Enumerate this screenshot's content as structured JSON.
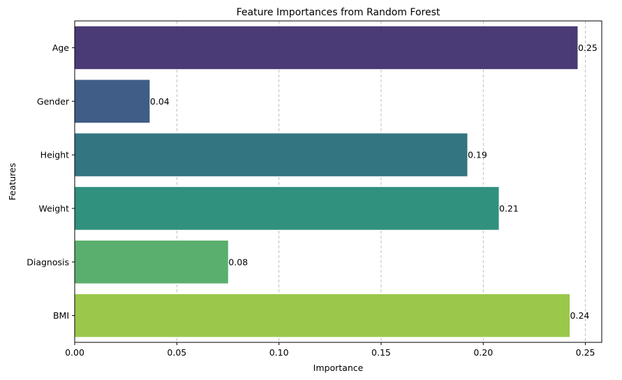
{
  "chart_data": {
    "type": "bar",
    "orientation": "horizontal",
    "title": "Feature Importances from Random Forest",
    "xlabel": "Importance",
    "ylabel": "Features",
    "categories": [
      "Age",
      "Gender",
      "Height",
      "Weight",
      "Diagnosis",
      "BMI"
    ],
    "values": [
      0.2462,
      0.0367,
      0.1922,
      0.2076,
      0.0751,
      0.2423
    ],
    "data_labels": [
      "0.25",
      "0.04",
      "0.19",
      "0.21",
      "0.08",
      "0.24"
    ],
    "colors": [
      "#4a3b77",
      "#3f5d86",
      "#337581",
      "#30917e",
      "#5aaf6e",
      "#9bc84b"
    ],
    "xlim": [
      0,
      0.258
    ],
    "xticks": [
      0.0,
      0.05,
      0.1,
      0.15,
      0.2,
      0.25
    ],
    "xtick_labels": [
      "0.00",
      "0.05",
      "0.10",
      "0.15",
      "0.20",
      "0.25"
    ],
    "grid": "x-dashed",
    "legend": "none"
  }
}
